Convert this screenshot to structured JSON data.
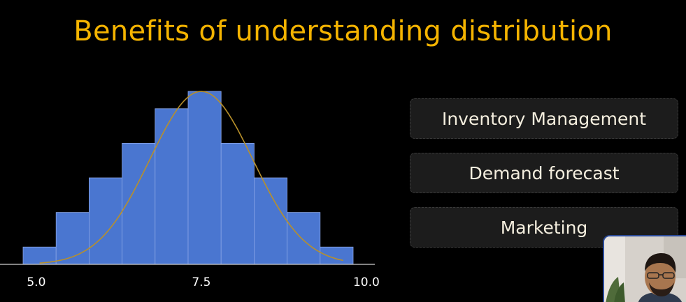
{
  "title": "Benefits of understanding distribution",
  "benefits": [
    "Inventory Management",
    "Demand forecast",
    "Marketing"
  ],
  "colors": {
    "title": "#f5b400",
    "bar": "#4a76d0",
    "curve": "#b8902a",
    "card_bg": "#1c1c1c",
    "card_text": "#f4eede"
  },
  "chart_data": {
    "type": "bar",
    "bins": [
      {
        "x0": 4.8,
        "x1": 5.3,
        "height": 1
      },
      {
        "x0": 5.3,
        "x1": 5.8,
        "height": 3
      },
      {
        "x0": 5.8,
        "x1": 6.3,
        "height": 5
      },
      {
        "x0": 6.3,
        "x1": 6.8,
        "height": 7
      },
      {
        "x0": 6.8,
        "x1": 7.3,
        "height": 9
      },
      {
        "x0": 7.3,
        "x1": 7.8,
        "height": 10
      },
      {
        "x0": 7.8,
        "x1": 8.3,
        "height": 7
      },
      {
        "x0": 8.3,
        "x1": 8.8,
        "height": 5
      },
      {
        "x0": 8.8,
        "x1": 9.3,
        "height": 3
      },
      {
        "x0": 9.3,
        "x1": 9.8,
        "height": 1
      }
    ],
    "tick_labels": [
      {
        "value": 5.0,
        "label": "5.0"
      },
      {
        "value": 7.5,
        "label": "7.5"
      },
      {
        "value": 10.0,
        "label": "10.0"
      }
    ],
    "curve": {
      "type": "normal",
      "mean": 7.5,
      "peak_height": 10
    },
    "xlim": [
      4.8,
      9.8
    ],
    "ylim": [
      0,
      10
    ],
    "grid": false,
    "legend": "none"
  }
}
